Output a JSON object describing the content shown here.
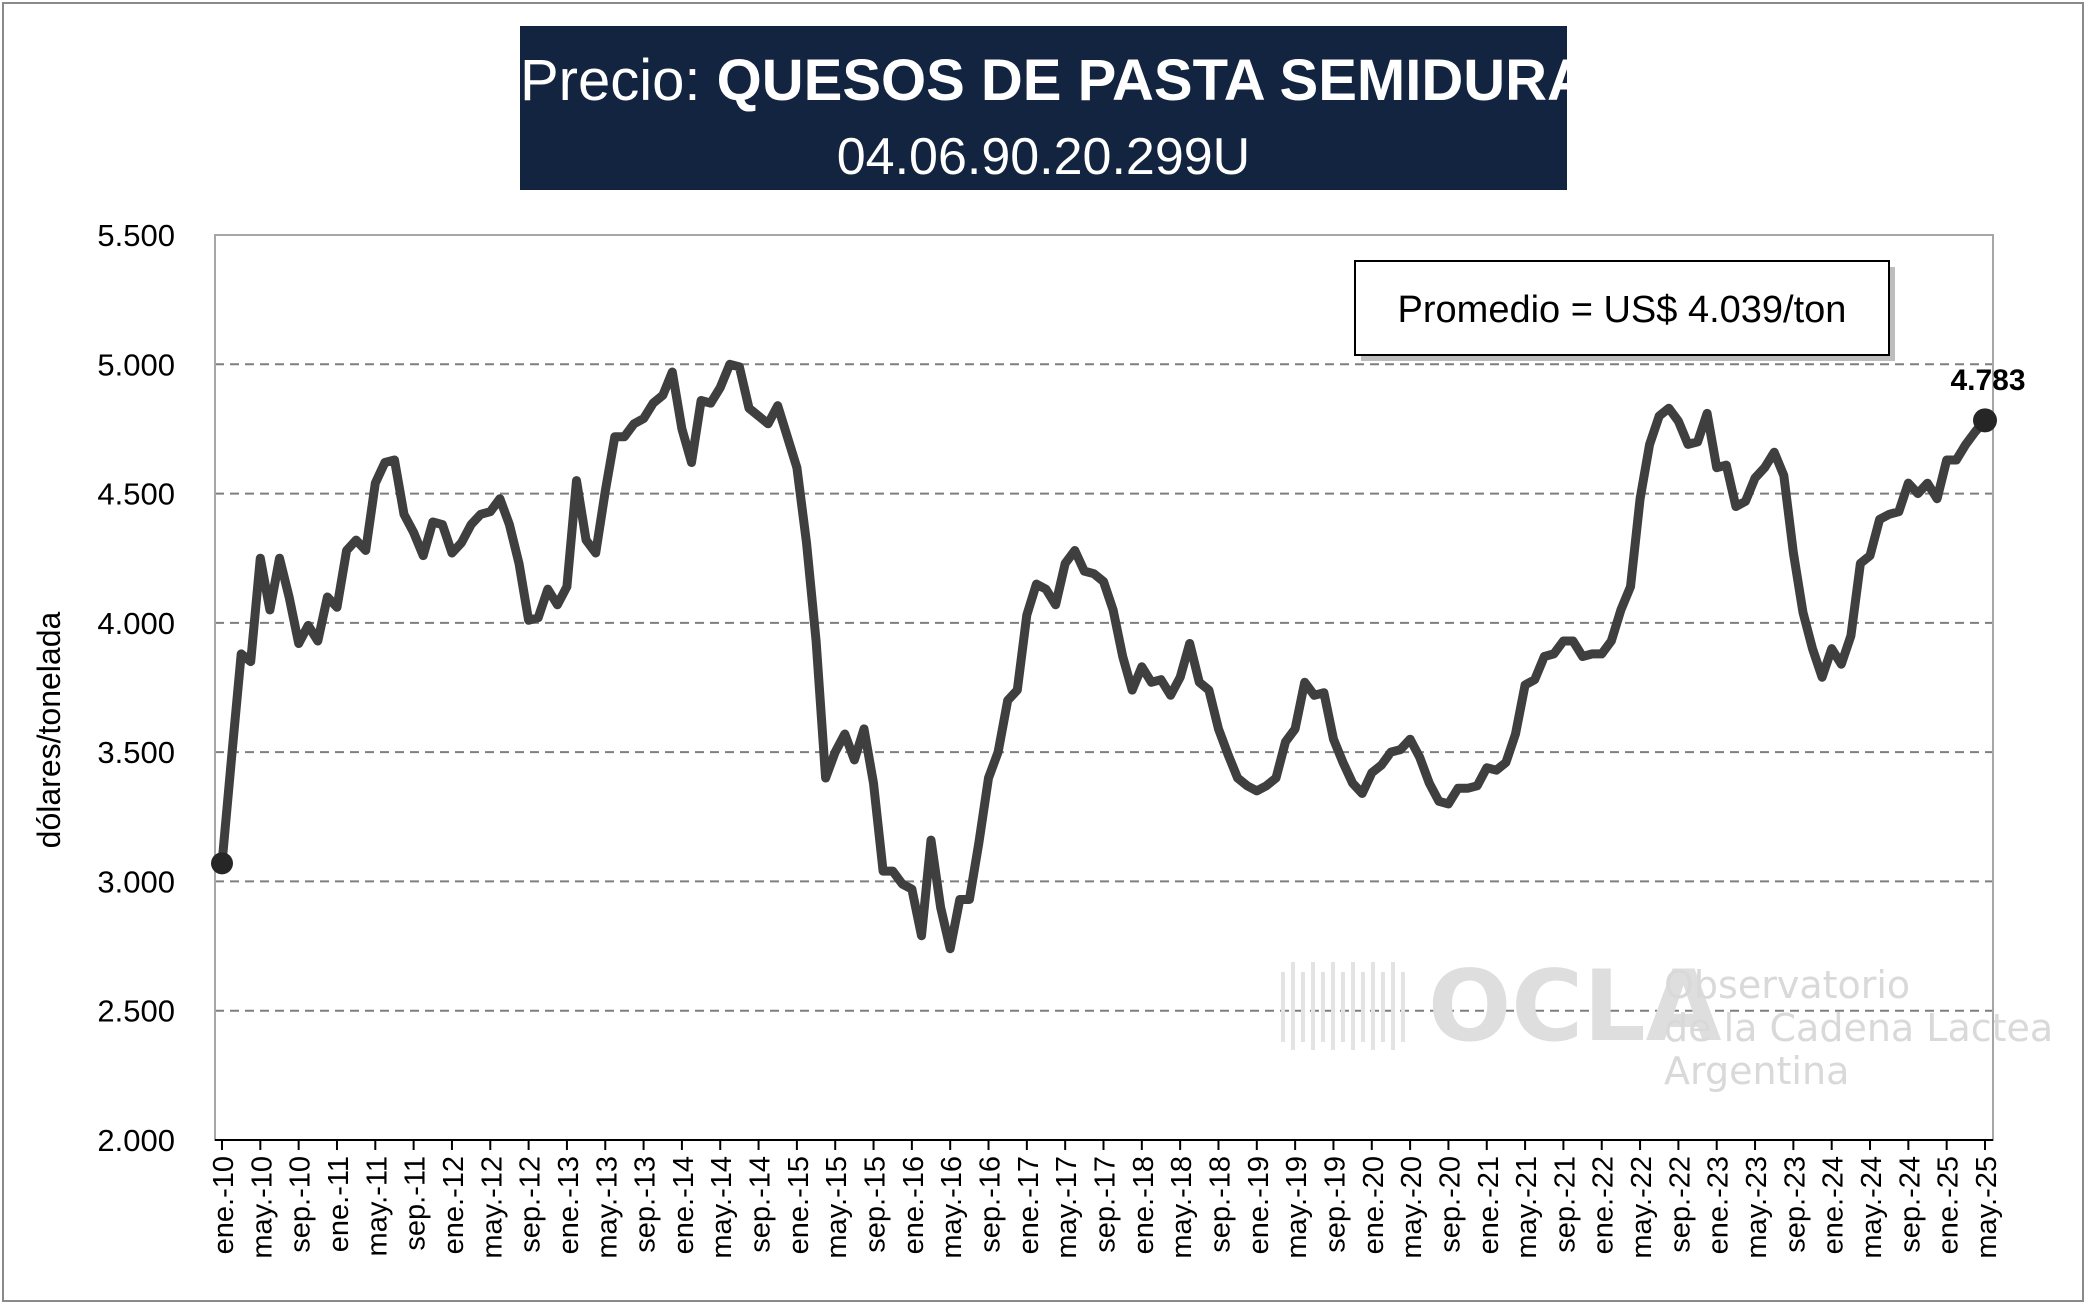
{
  "header": {
    "title_prefix": "Precio:",
    "title_bold": "QUESOS DE PASTA SEMIDURA",
    "subtitle": "04.06.90.20.299U"
  },
  "annotations": {
    "average_label": "Promedio = US$ 4.039/ton",
    "last_value_label": "4.783"
  },
  "watermark": {
    "logo_text": "OCLA",
    "line1": "Observatorio",
    "line2": "de la Cadena Lactea",
    "line3": "Argentina"
  },
  "colors": {
    "series": "#3f3f3f",
    "title_bg": "#12243f",
    "grid": "#7f7f7f",
    "watermark": "#d9d9d9"
  },
  "chart_data": {
    "type": "line",
    "title": "Precio: QUESOS DE PASTA SEMIDURA",
    "subtitle": "04.06.90.20.299U",
    "xlabel": "",
    "ylabel": "dólares/tonelada",
    "ylim": [
      2000,
      5500
    ],
    "y_ticks": [
      2000,
      2500,
      3000,
      3500,
      4000,
      4500,
      5000,
      5500
    ],
    "y_tick_labels": [
      "2.000",
      "2.500",
      "3.000",
      "3.500",
      "4.000",
      "4.500",
      "5.000",
      "5.500"
    ],
    "grid": "horizontal dashed",
    "x_start": "ene.-10",
    "x_end": "may.-25",
    "x_tick_labels": [
      "ene.-10",
      "may.-10",
      "sep.-10",
      "ene.-11",
      "may.-11",
      "sep.-11",
      "ene.-12",
      "may.-12",
      "sep.-12",
      "ene.-13",
      "may.-13",
      "sep.-13",
      "ene.-14",
      "may.-14",
      "sep.-14",
      "ene.-15",
      "may.-15",
      "sep.-15",
      "ene.-16",
      "may.-16",
      "sep.-16",
      "ene.-17",
      "may.-17",
      "sep.-17",
      "ene.-18",
      "may.-18",
      "sep.-18",
      "ene.-19",
      "may.-19",
      "sep.-19",
      "ene.-20",
      "may.-20",
      "sep.-20",
      "ene.-21",
      "may.-21",
      "sep.-21",
      "ene.-22",
      "may.-22",
      "sep.-22",
      "ene.-23",
      "may.-23",
      "sep.-23",
      "ene.-24",
      "may.-24",
      "sep.-24",
      "ene.-25",
      "may.-25"
    ],
    "series": [
      {
        "values": [
          3070,
          3480,
          3880,
          3850,
          4250,
          4050,
          4250,
          4100,
          3920,
          3990,
          3930,
          4100,
          4060,
          4280,
          4320,
          4280,
          4540,
          4620,
          4630,
          4420,
          4350,
          4260,
          4390,
          4380,
          4270,
          4310,
          4380,
          4420,
          4430,
          4480,
          4380,
          4230,
          4010,
          4020,
          4130,
          4070,
          4140,
          4550,
          4320,
          4270,
          4510,
          4720,
          4720,
          4770,
          4790,
          4850,
          4880,
          4970,
          4750,
          4620,
          4860,
          4850,
          4910,
          5000,
          4990,
          4830,
          4800,
          4770,
          4840,
          4720,
          4600,
          4310,
          3930,
          3400,
          3500,
          3570,
          3470,
          3590,
          3380,
          3040,
          3040,
          2990,
          2970,
          2790,
          3160,
          2900,
          2740,
          2930,
          2930,
          3150,
          3400,
          3500,
          3700,
          3740,
          4030,
          4150,
          4130,
          4070,
          4230,
          4280,
          4200,
          4190,
          4160,
          4050,
          3870,
          3740,
          3830,
          3770,
          3780,
          3720,
          3790,
          3920,
          3770,
          3740,
          3590,
          3490,
          3400,
          3370,
          3350,
          3370,
          3400,
          3540,
          3590,
          3770,
          3720,
          3730,
          3550,
          3460,
          3380,
          3340,
          3420,
          3450,
          3500,
          3510,
          3550,
          3480,
          3380,
          3310,
          3300,
          3360,
          3360,
          3370,
          3440,
          3430,
          3460,
          3570,
          3760,
          3780,
          3870,
          3880,
          3930,
          3930,
          3870,
          3880,
          3880,
          3930,
          4050,
          4140,
          4480,
          4690,
          4800,
          4830,
          4780,
          4690,
          4700,
          4810,
          4600,
          4610,
          4450,
          4470,
          4560,
          4600,
          4660,
          4570,
          4270,
          4040,
          3900,
          3790,
          3900,
          3840,
          3950,
          4230,
          4260,
          4400,
          4420,
          4430,
          4540,
          4500,
          4540,
          4480,
          4630,
          4630,
          4690,
          4740,
          4783
        ]
      }
    ]
  }
}
